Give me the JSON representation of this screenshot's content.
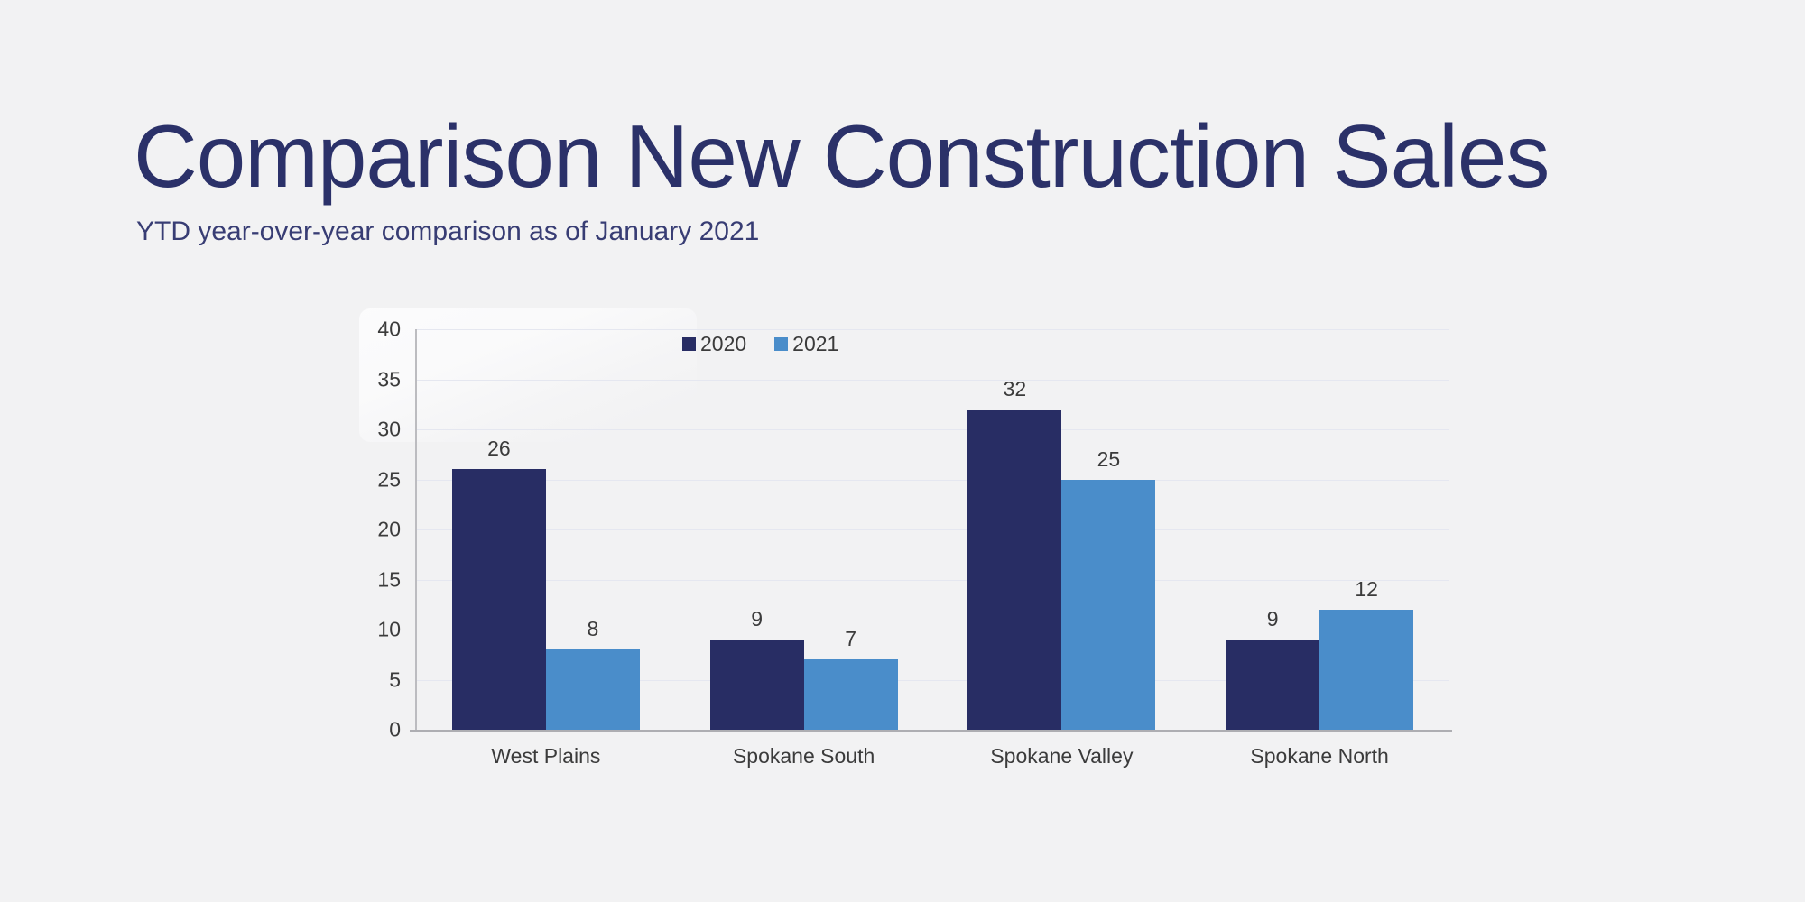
{
  "page": {
    "title": "Comparison New Construction Sales",
    "subtitle": "YTD year-over-year comparison as of January 2021"
  },
  "colors": {
    "background": "#f2f2f3",
    "title_text": "#2b3169",
    "subtitle_text": "#383d74",
    "chart_text": "#3b3b3b",
    "series_2020": "#282d64",
    "series_2021": "#4a8dca",
    "gridline": "#e5e7f0",
    "axis_line": "#aeaeb2"
  },
  "chart_data": {
    "type": "bar",
    "title": "",
    "xlabel": "",
    "ylabel": "",
    "categories": [
      "West Plains",
      "Spokane South",
      "Spokane Valley",
      "Spokane North"
    ],
    "series": [
      {
        "name": "2020",
        "color_key": "series_2020",
        "values": [
          26,
          9,
          32,
          9
        ]
      },
      {
        "name": "2021",
        "color_key": "series_2021",
        "values": [
          8,
          7,
          25,
          12
        ]
      }
    ],
    "ylim": [
      0,
      40
    ],
    "yticks": [
      0,
      5,
      10,
      15,
      20,
      25,
      30,
      35,
      40
    ],
    "grid": true,
    "data_labels": true,
    "legend_position": "top-inside"
  }
}
